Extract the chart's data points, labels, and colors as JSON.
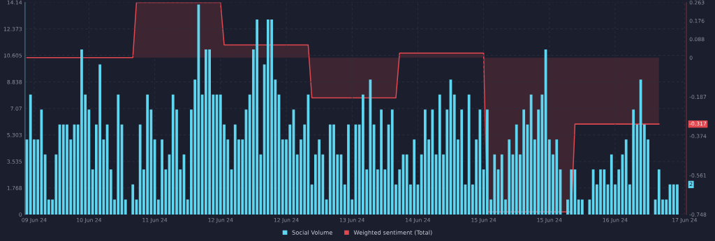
{
  "chart_data": {
    "type": "bar",
    "categories": [
      null,
      null,
      "09 Jun 24",
      null,
      null,
      null,
      null,
      null,
      null,
      null,
      null,
      null,
      null,
      null,
      null,
      null,
      null,
      "10 Jun 24",
      null,
      null,
      null,
      null,
      null,
      null,
      null,
      null,
      null,
      null,
      null,
      null,
      null,
      null,
      null,
      null,
      null,
      "11 Jun 24",
      null,
      null,
      null,
      null,
      null,
      null,
      null,
      null,
      null,
      null,
      null,
      null,
      null,
      null,
      null,
      null,
      null,
      "12 Jun 24",
      null,
      null,
      null,
      null,
      null,
      null,
      null,
      null,
      null,
      null,
      null,
      null,
      null,
      null,
      null,
      null,
      null,
      "12 Jun 24",
      null,
      null,
      null,
      null,
      null,
      null,
      null,
      null,
      null,
      null,
      null,
      null,
      null,
      null,
      null,
      null,
      null,
      "13 Jun 24",
      null,
      null,
      null,
      null,
      null,
      null,
      null,
      null,
      null,
      null,
      null,
      null,
      null,
      null,
      null,
      null,
      null,
      "14 Jun 24",
      null,
      null,
      null,
      null,
      null,
      null,
      null,
      null,
      null,
      null,
      null,
      null,
      null,
      null,
      null,
      null,
      null,
      "15 Jun 24",
      null,
      null,
      null,
      null,
      null,
      null,
      null,
      null,
      null,
      null,
      null,
      null,
      null,
      null,
      null,
      null,
      null,
      "15 Jun 24",
      null,
      null,
      null,
      null,
      null,
      null,
      null,
      null,
      null,
      null,
      null,
      null,
      null,
      null,
      null,
      null,
      null,
      "16 Jun 24",
      null,
      null,
      null,
      null,
      null,
      null,
      null,
      null,
      null,
      null,
      null,
      null,
      null,
      null,
      null,
      null,
      null,
      null,
      "17 Jun 24"
    ],
    "series": [
      {
        "name": "Social Volume",
        "color": "#5fd6ef",
        "values": [
          5,
          8,
          5,
          5,
          7,
          4,
          1,
          1,
          4,
          6,
          6,
          6,
          5,
          6,
          6,
          11,
          8,
          7,
          3,
          6,
          10,
          5,
          6,
          3,
          1,
          8,
          6,
          1,
          0,
          2,
          1,
          6,
          3,
          8,
          7,
          5,
          1,
          5,
          3,
          4,
          8,
          7,
          3,
          4,
          1,
          7,
          9,
          14,
          8,
          11,
          11,
          8,
          8,
          8,
          6,
          5,
          3,
          6,
          5,
          5,
          7,
          8,
          11,
          13,
          4,
          10,
          13,
          13,
          9,
          8,
          5,
          5,
          6,
          7,
          4,
          5,
          6,
          8,
          2,
          4,
          5,
          4,
          1,
          6,
          6,
          4,
          4,
          2,
          6,
          1,
          6,
          6,
          8,
          3,
          9,
          6,
          3,
          7,
          3,
          6,
          7,
          2,
          3,
          4,
          4,
          2,
          5,
          2,
          4,
          7,
          5,
          7,
          4,
          8,
          4,
          7,
          9,
          8,
          5,
          7,
          2,
          8,
          2,
          5,
          7,
          3,
          7,
          1,
          4,
          3,
          4,
          1,
          5,
          4,
          6,
          4,
          7,
          6,
          8,
          5,
          7,
          8,
          11,
          5,
          4,
          5,
          3,
          0,
          1,
          3,
          3,
          1,
          1,
          0,
          1,
          3,
          2,
          3,
          3,
          2,
          4,
          2,
          3,
          4,
          5,
          2,
          7,
          6,
          9,
          6,
          5,
          0,
          1,
          3,
          1,
          1,
          2,
          2,
          2,
          null,
          null
        ]
      },
      {
        "name": "Weighted sentiment (Total)",
        "type": "area",
        "axis": "y2",
        "color": "#e0474f",
        "values": [
          0,
          0,
          0,
          0,
          0,
          0,
          0,
          0,
          0,
          0,
          0,
          0,
          0,
          0,
          0,
          0,
          0,
          0,
          0,
          0,
          0,
          0,
          0,
          0,
          0,
          0,
          0,
          0,
          0,
          0,
          0.263,
          0.263,
          0.263,
          0.263,
          0.263,
          0.263,
          0.263,
          0.263,
          0.263,
          0.263,
          0.263,
          0.263,
          0.263,
          0.263,
          0.263,
          0.263,
          0.263,
          0.263,
          0.263,
          0.263,
          0.263,
          0.263,
          0.263,
          0.263,
          0.06,
          0.06,
          0.06,
          0.06,
          0.06,
          0.06,
          0.06,
          0.06,
          0.06,
          0.06,
          0.06,
          0.06,
          0.06,
          0.06,
          0.06,
          0.06,
          0.06,
          0.06,
          0.06,
          0.06,
          0.06,
          0.06,
          0.06,
          0.06,
          -0.192,
          -0.192,
          -0.192,
          -0.192,
          -0.192,
          -0.192,
          -0.192,
          -0.192,
          -0.192,
          -0.192,
          -0.192,
          -0.192,
          -0.192,
          -0.192,
          -0.192,
          -0.192,
          -0.192,
          -0.192,
          -0.192,
          -0.192,
          -0.192,
          -0.192,
          -0.192,
          -0.192,
          0.021,
          0.021,
          0.021,
          0.021,
          0.021,
          0.021,
          0.021,
          0.021,
          0.021,
          0.021,
          0.021,
          0.021,
          0.021,
          0.021,
          0.021,
          0.021,
          0.021,
          0.021,
          0.021,
          0.021,
          0.021,
          0.021,
          0.021,
          0.021,
          -0.736,
          -0.736,
          -0.736,
          -0.736,
          -0.736,
          -0.736,
          -0.736,
          -0.736,
          -0.736,
          -0.736,
          -0.736,
          -0.736,
          -0.736,
          -0.736,
          -0.736,
          -0.736,
          -0.736,
          -0.736,
          -0.736,
          -0.736,
          -0.736,
          -0.736,
          -0.736,
          -0.736,
          -0.317,
          -0.317,
          -0.317,
          -0.317,
          -0.317,
          -0.317,
          -0.317,
          -0.317,
          -0.317,
          -0.317,
          -0.317,
          -0.317,
          -0.317,
          -0.317,
          -0.317,
          -0.317,
          -0.317,
          -0.317,
          -0.317,
          -0.317,
          -0.317,
          -0.317,
          -0.317,
          -0.317,
          null,
          null,
          null,
          null,
          null,
          null,
          null
        ]
      }
    ],
    "ylim": [
      0,
      14.14
    ],
    "yticks": [
      0,
      1.768,
      3.535,
      5.303,
      7.07,
      8.838,
      10.605,
      12.373,
      14.14
    ],
    "y2lim": [
      -0.748,
      0.263
    ],
    "y2ticks": [
      -0.748,
      -0.561,
      -0.374,
      -0.187,
      0,
      0.088,
      0.176,
      0.263
    ],
    "annotations": [
      {
        "text": "2",
        "y": 2
      },
      "-0.317"
    ],
    "grid": true,
    "legend": "bottom"
  }
}
